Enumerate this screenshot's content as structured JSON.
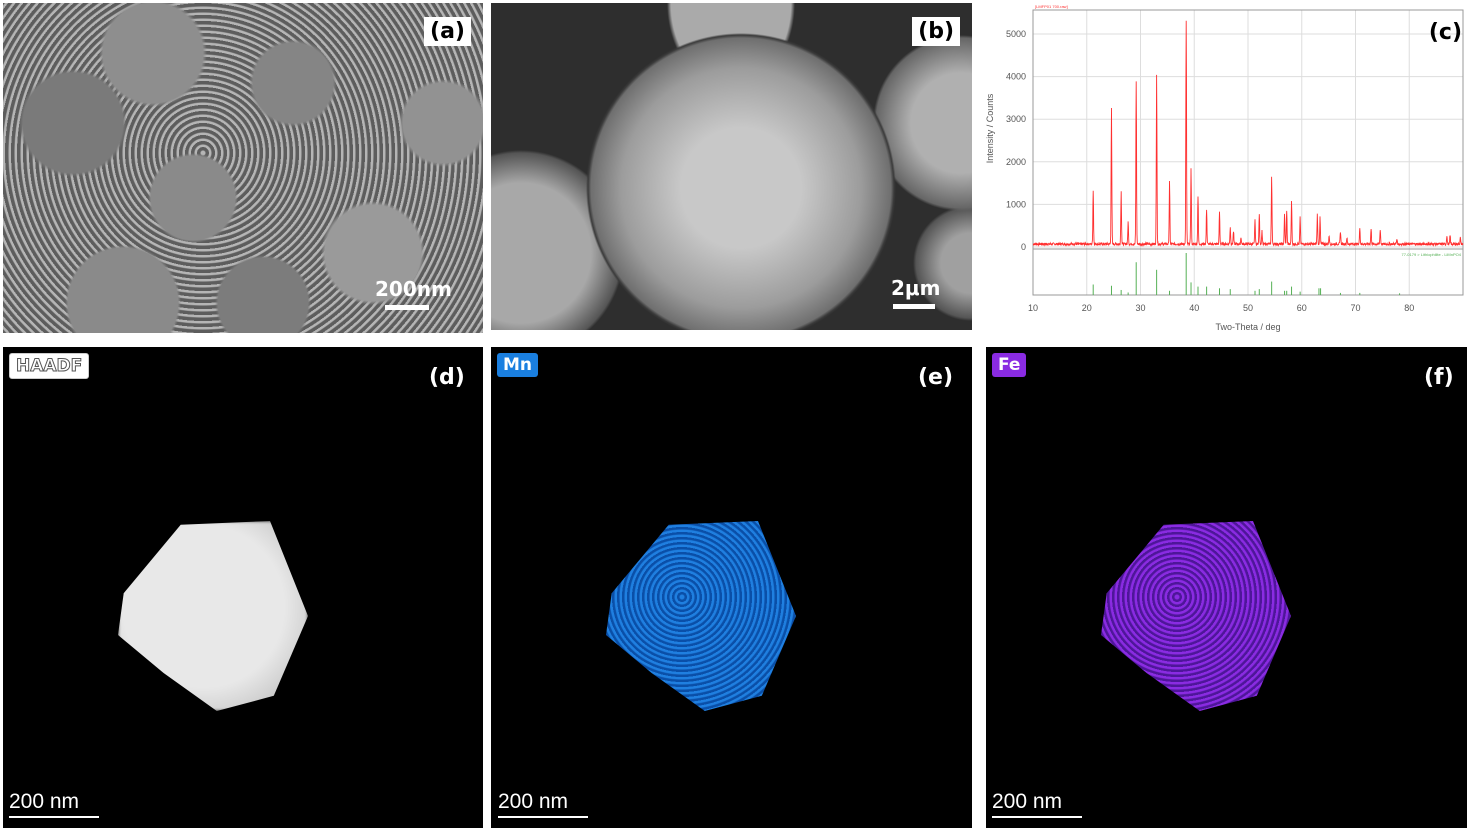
{
  "panels": {
    "a": {
      "label": "(a)",
      "scale_bar": "200nm"
    },
    "b": {
      "label": "(b)",
      "scale_bar": "2μm"
    },
    "c": {
      "label": "(c)"
    },
    "d": {
      "label": "(d)",
      "badge": "HAADF",
      "scale_bar": "200 nm"
    },
    "e": {
      "label": "(e)",
      "badge": "Mn",
      "badge_color": "#1a7fe0",
      "scale_bar": "200 nm"
    },
    "f": {
      "label": "(f)",
      "badge": "Fe",
      "badge_color": "#8a2be2",
      "scale_bar": "200 nm"
    }
  },
  "chart_data": {
    "type": "line",
    "title": "",
    "xlabel": "Two-Theta / deg",
    "ylabel": "Intensity / Counts",
    "xlim": [
      10,
      90
    ],
    "ylim": [
      0,
      5500
    ],
    "xticks": [
      10,
      20,
      30,
      40,
      50,
      60,
      70,
      80
    ],
    "yticks": [
      0,
      1000,
      2000,
      3000,
      4000,
      5000
    ],
    "grid": true,
    "series": [
      {
        "name": "[LMFP01 700.raw]",
        "color": "#ff3030",
        "peaks": [
          [
            21.2,
            1250
          ],
          [
            24.6,
            3200
          ],
          [
            26.4,
            1230
          ],
          [
            27.7,
            520
          ],
          [
            29.2,
            3820
          ],
          [
            33.0,
            3960
          ],
          [
            35.4,
            1460
          ],
          [
            38.5,
            5250
          ],
          [
            39.4,
            1760
          ],
          [
            40.7,
            1120
          ],
          [
            42.3,
            820
          ],
          [
            44.7,
            740
          ],
          [
            46.7,
            400
          ],
          [
            47.3,
            300
          ],
          [
            48.7,
            160
          ],
          [
            51.3,
            550
          ],
          [
            52.1,
            720
          ],
          [
            52.6,
            300
          ],
          [
            54.4,
            1600
          ],
          [
            56.8,
            700
          ],
          [
            57.2,
            800
          ],
          [
            58.1,
            1030
          ],
          [
            59.7,
            620
          ],
          [
            62.9,
            700
          ],
          [
            63.4,
            620
          ],
          [
            65.1,
            200
          ],
          [
            67.2,
            300
          ],
          [
            68.4,
            150
          ],
          [
            70.8,
            400
          ],
          [
            72.9,
            350
          ],
          [
            74.6,
            350
          ],
          [
            77.7,
            120
          ],
          [
            87.0,
            200
          ],
          [
            87.6,
            200
          ],
          [
            89.5,
            150
          ]
        ]
      },
      {
        "name": "77-0179 > Lithiophilite - LiMnPO4",
        "color": "#55b055",
        "sticks": [
          [
            21.2,
            25
          ],
          [
            24.6,
            22
          ],
          [
            26.4,
            12
          ],
          [
            27.7,
            6
          ],
          [
            29.2,
            78
          ],
          [
            33.0,
            60
          ],
          [
            35.4,
            10
          ],
          [
            38.5,
            100
          ],
          [
            39.4,
            30
          ],
          [
            40.7,
            20
          ],
          [
            42.3,
            20
          ],
          [
            44.7,
            16
          ],
          [
            46.7,
            14
          ],
          [
            51.3,
            10
          ],
          [
            52.1,
            14
          ],
          [
            54.4,
            32
          ],
          [
            56.8,
            10
          ],
          [
            57.2,
            10
          ],
          [
            58.1,
            20
          ],
          [
            59.7,
            8
          ],
          [
            63.2,
            16
          ],
          [
            63.5,
            16
          ],
          [
            67.2,
            5
          ],
          [
            70.8,
            5
          ],
          [
            78.2,
            4
          ]
        ]
      }
    ]
  }
}
